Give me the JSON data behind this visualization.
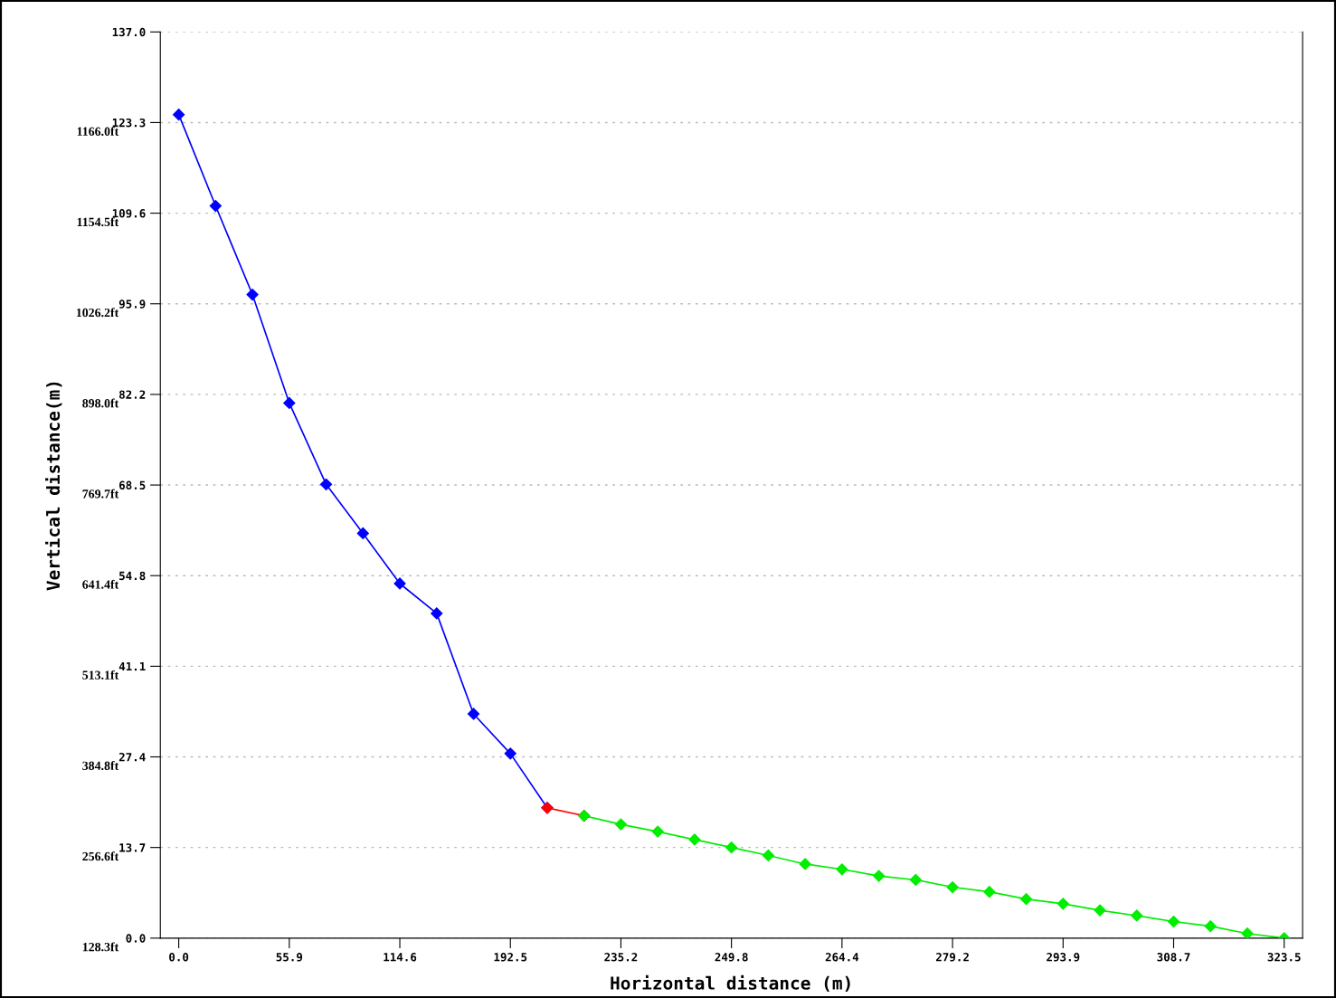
{
  "chart_data": {
    "type": "line",
    "xlabel": "Horizontal distance (m)",
    "ylabel": "Vertical distance(m)",
    "categories": [
      "0.0",
      null,
      null,
      "55.9",
      null,
      null,
      "114.6",
      null,
      null,
      "192.5",
      null,
      null,
      "235.2",
      null,
      null,
      "249.8",
      null,
      null,
      "264.4",
      null,
      null,
      "279.2",
      null,
      null,
      "293.9",
      null,
      null,
      "308.7",
      null,
      null,
      "323.5"
    ],
    "series": [
      {
        "color": "#0000ff",
        "values": [
          124.5,
          110.7,
          97.3,
          80.9,
          68.6,
          61.2,
          53.6,
          49.1,
          33.9,
          27.9,
          19.7,
          null,
          null,
          null,
          null,
          null,
          null,
          null,
          null,
          null,
          null,
          null,
          null,
          null,
          null,
          null,
          null,
          null,
          null,
          null,
          null
        ]
      },
      {
        "color": "#ff0000",
        "values": [
          null,
          null,
          null,
          null,
          null,
          null,
          null,
          null,
          null,
          null,
          19.7,
          18.5,
          null,
          null,
          null,
          null,
          null,
          null,
          null,
          null,
          null,
          null,
          null,
          null,
          null,
          null,
          null,
          null,
          null,
          null,
          null
        ]
      },
      {
        "color": "#00ee00",
        "values": [
          null,
          null,
          null,
          null,
          null,
          null,
          null,
          null,
          null,
          null,
          null,
          18.5,
          17.2,
          16.1,
          14.9,
          13.7,
          12.5,
          11.2,
          10.4,
          9.4,
          8.8,
          7.7,
          7.0,
          5.9,
          5.2,
          4.2,
          3.4,
          2.5,
          1.8,
          0.7,
          0.0
        ]
      }
    ],
    "ylim": [
      0,
      137.0
    ],
    "yticks": [
      {
        "value": 0,
        "label": "0.0"
      },
      13.7,
      27.4,
      41.1,
      54.8,
      68.5,
      82.2,
      95.9,
      109.6,
      123.3,
      {
        "value": 137,
        "label": "137.0"
      }
    ],
    "annotations": [
      "128.3ft",
      "256.6ft",
      "384.8ft",
      "513.1ft",
      "641.4ft",
      "769.7ft",
      "898.0ft",
      "1026.2ft",
      "1154.5ft",
      "1166.0ft"
    ],
    "grid": "y",
    "marker": "diamond",
    "line_style": "solid"
  }
}
